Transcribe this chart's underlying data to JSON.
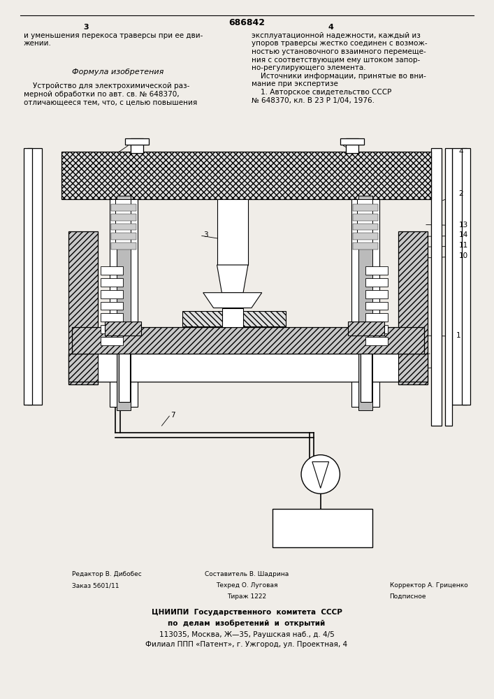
{
  "page_color": "#f0ede8",
  "title_number": "686842",
  "col_left_num": "3",
  "col_right_num": "4",
  "text_left_col1": "и уменьшения перекоса траверсы при ее дви-\nжении.",
  "text_formula_header": "Формула изобретения",
  "text_left_col2": "    Устройство для электрохимической раз-\nмерной обработки по авт. св. № 648370,\nотличающееся тем, что, с целью повышения",
  "text_right_col": "эксплуатационной надежности, каждый из\nупоров траверсы жестко соединен с возмож-\nностью установочного взаимного перемеще-\nния с соответствующим ему штоком запор-\nно-регулирующего элемента.\n    Источники информации, принятые во вни-\nмание при экспертизе\n    1. Авторское свидетельство СССР\n№ 648370, кл. В 23 Р 1/04, 1976.",
  "footer_line1_left": "Редактор В. Дибобес",
  "footer_line1_center": "Составитель В. Шадрина",
  "footer_line2_left": "Заказ 5601/11",
  "footer_line2_center": "Техред О. Луговая",
  "footer_line2_right": "Корректор А. Гриценко",
  "footer_line3_center": "Тираж 1222",
  "footer_line3_right": "Подписное",
  "footer_cniip1": "ЦНИИПИ  Государственного  комитета  СССР",
  "footer_cniip2": "по  делам  изобретений  и  открытий",
  "footer_cniip3": "113035, Москва, Ж—35, Раушская наб., д. 4/5",
  "footer_cniip4": "Филиал ППП «Патент», г. Ужгород, ул. Проектная, 4"
}
